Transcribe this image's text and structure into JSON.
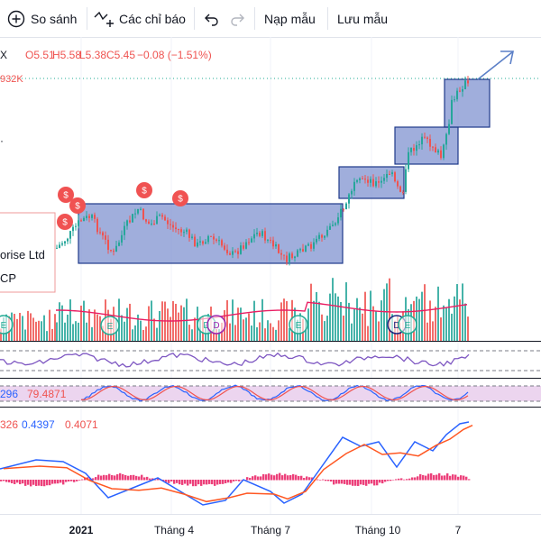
{
  "toolbar": {
    "compare_label": "So sánh",
    "indicators_label": "Các chỉ báo",
    "template_label": "Nạp mẫu",
    "save_label": "Lưu mẫu"
  },
  "header": {
    "symbol_fragment": "X",
    "open": "O5.51",
    "high": "H5.58",
    "low": "L5.38",
    "close": "C5.45",
    "change": "−0.08 (−1.51%)",
    "volume": "932K"
  },
  "info_card": {
    "name_fragment": "orise Ltd",
    "type_fragment": "CP"
  },
  "indicators": {
    "osc2_v1": "296",
    "osc2_v2": "79.4871",
    "macd_v1": "326",
    "macd_v2": "0.4397",
    "macd_v3": "0.4071"
  },
  "colors": {
    "up": "#26a69a",
    "down": "#ef5350",
    "box_fill": "#7b8fce",
    "box_stroke": "#1e3a8a",
    "volume_ma": "#e91e63",
    "rsi": "#7e57c2",
    "macd": "#2962ff",
    "signal": "#ff5722",
    "hist": "#e91e63",
    "dividend": "#f05252"
  },
  "chart_data": {
    "type": "candlestick",
    "x_tick_labels": [
      "2021",
      "Tháng 4",
      "Tháng 7",
      "Tháng 10",
      "7"
    ],
    "ohlc_last": {
      "open": 5.51,
      "high": 5.58,
      "low": 5.38,
      "close": 5.45,
      "change": -0.08,
      "change_pct": -1.51
    },
    "volume_last": "932K",
    "trend": "sideways consolidation through mid-year, then a stepwise breakout higher into the right edge",
    "dividend_markers": 5,
    "event_badges": 7
  }
}
